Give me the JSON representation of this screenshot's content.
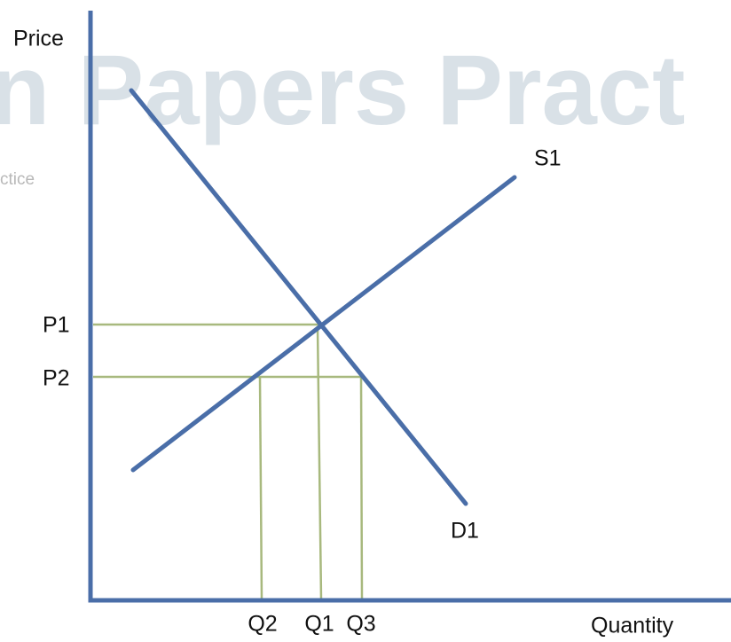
{
  "axes": {
    "y_label": "Price",
    "x_label": "Quantity"
  },
  "curves": {
    "supply": "S1",
    "demand": "D1"
  },
  "prices": [
    "P1",
    "P2"
  ],
  "quantities": [
    "Q2",
    "Q1",
    "Q3"
  ],
  "watermark": {
    "main": "n Papers Pract",
    "sub": "ctice"
  }
}
